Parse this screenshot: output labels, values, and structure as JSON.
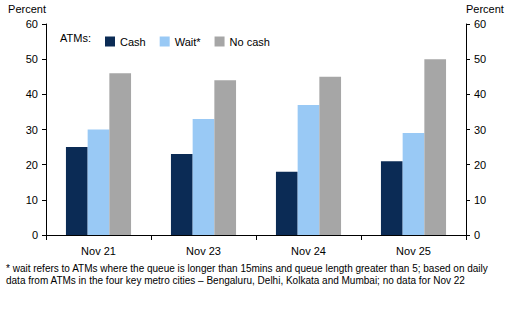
{
  "chart_data": {
    "type": "bar",
    "categories": [
      "Nov 21",
      "Nov 23",
      "Nov 24",
      "Nov 25"
    ],
    "series": [
      {
        "name": "Cash",
        "color": "#0b2b55",
        "values": [
          25,
          23,
          18,
          21
        ]
      },
      {
        "name": "Wait*",
        "color": "#99c9f5",
        "values": [
          30,
          33,
          37,
          29
        ]
      },
      {
        "name": "No cash",
        "color": "#a6a6a6",
        "values": [
          46,
          44,
          45,
          50
        ]
      }
    ],
    "ylabel": "Percent",
    "y2label": "Percent",
    "ylim": [
      0,
      60
    ],
    "yticks": [
      0,
      10,
      20,
      30,
      40,
      50,
      60
    ],
    "y2lim": [
      0,
      60
    ],
    "y2ticks": [
      0,
      10,
      20,
      30,
      40,
      50,
      60
    ],
    "legend_title": "ATMs:",
    "legend": "top-left",
    "grid": false,
    "note": "* wait refers to ATMs where the queue is longer than 15mins and queue length greater than 5; based on daily data from ATMs in the four key metro cities – Bengaluru, Delhi, Kolkata and Mumbai; no data for Nov 22"
  }
}
